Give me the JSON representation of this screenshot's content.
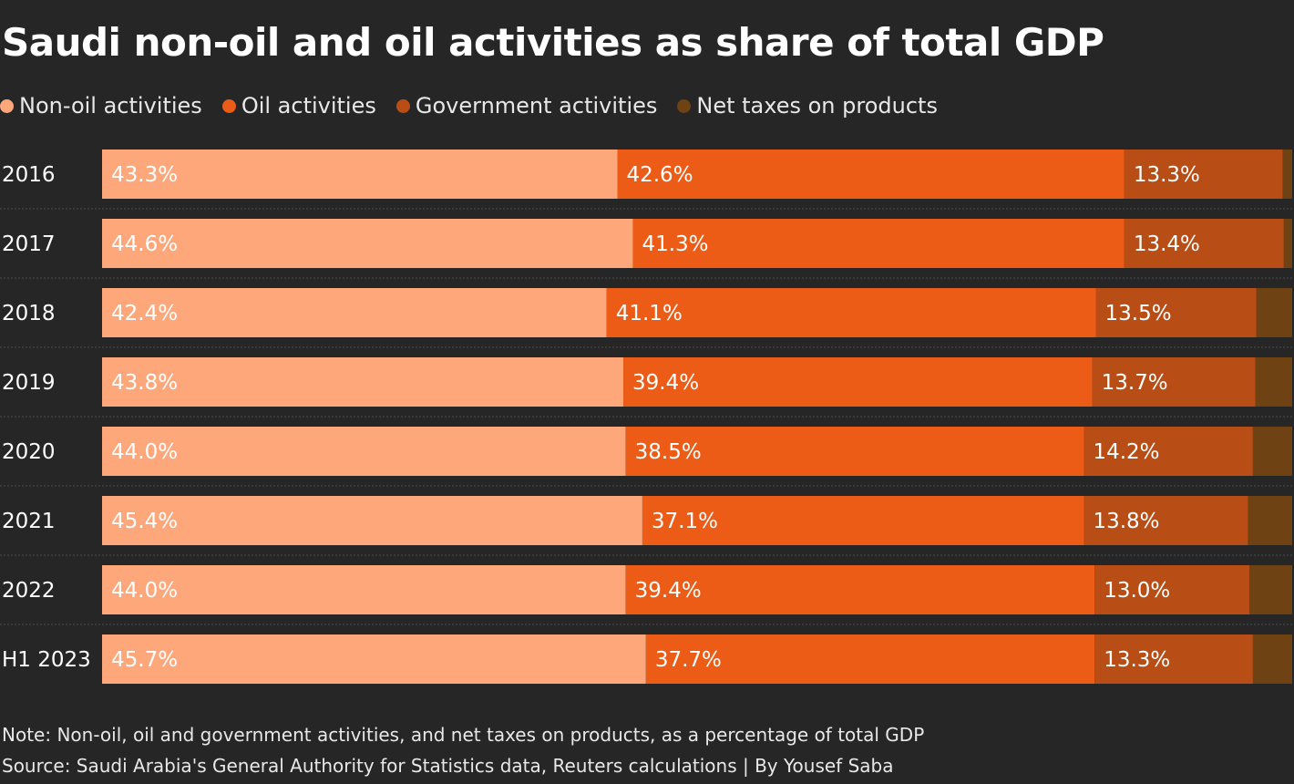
{
  "chart_data": {
    "type": "bar",
    "orientation": "horizontal",
    "stacked": true,
    "title": "Saudi non-oil and oil activities as share of total GDP",
    "categories": [
      "2016",
      "2017",
      "2018",
      "2019",
      "2020",
      "2021",
      "2022",
      "H1 2023"
    ],
    "series": [
      {
        "name": "Non-oil activities",
        "color": "#fda77b",
        "values": [
          43.3,
          44.6,
          42.4,
          43.8,
          44.0,
          45.4,
          44.0,
          45.7
        ],
        "labels": [
          "43.3%",
          "44.6%",
          "42.4%",
          "43.8%",
          "44.0%",
          "45.4%",
          "44.0%",
          "45.7%"
        ]
      },
      {
        "name": "Oil activities",
        "color": "#ed5c17",
        "values": [
          42.6,
          41.3,
          41.1,
          39.4,
          38.5,
          37.1,
          39.4,
          37.7
        ],
        "labels": [
          "42.6%",
          "41.3%",
          "41.1%",
          "39.4%",
          "38.5%",
          "37.1%",
          "39.4%",
          "37.7%"
        ]
      },
      {
        "name": "Government activities",
        "color": "#b84e16",
        "values": [
          13.3,
          13.4,
          13.5,
          13.7,
          14.2,
          13.8,
          13.0,
          13.3
        ],
        "labels": [
          "13.3%",
          "13.4%",
          "13.5%",
          "13.7%",
          "14.2%",
          "13.8%",
          "13.0%",
          "13.3%"
        ]
      },
      {
        "name": "Net taxes on products",
        "color": "#6e4212",
        "values": [
          0.8,
          0.7,
          3.0,
          3.1,
          3.3,
          3.7,
          3.6,
          3.3
        ],
        "labels": [
          "",
          "",
          "",
          "",
          "",
          "",
          "",
          ""
        ]
      }
    ],
    "xlim": [
      0,
      100
    ],
    "legend": "top-left",
    "grid": false
  },
  "notes": {
    "note": "Note: Non-oil, oil and government activities, and net taxes on products, as a percentage of total GDP",
    "source": "Source: Saudi Arabia's General Authority for Statistics data, Reuters calculations | By Yousef Saba"
  }
}
